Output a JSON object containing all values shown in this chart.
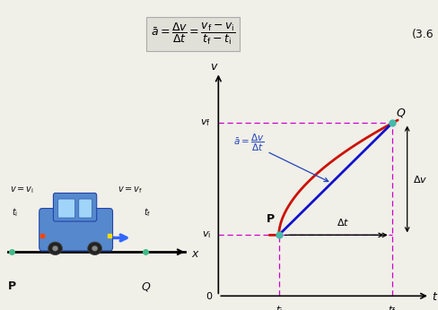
{
  "bg_color": "#f0efe8",
  "graph_bg": "#f0efe8",
  "formula_box_color": "#e0dfd8",
  "formula_text": "$\\bar{a} = \\dfrac{\\Delta v}{\\Delta t} = \\dfrac{v_{\\mathrm{f}} - v_{\\mathrm{i}}}{t_{\\mathrm{f}} - t_{\\mathrm{i}}}$",
  "eq_number": "(3.6",
  "t_i": 0.3,
  "t_f": 0.9,
  "v_i": 0.25,
  "v_f": 0.82,
  "curve_color": "#cc1100",
  "line_color": "#1111cc",
  "dashed_color": "#cc00cc",
  "arrow_color": "#111111",
  "annotation_color": "#2244bb",
  "point_color": "#44bbaa",
  "text_color": "#111111"
}
